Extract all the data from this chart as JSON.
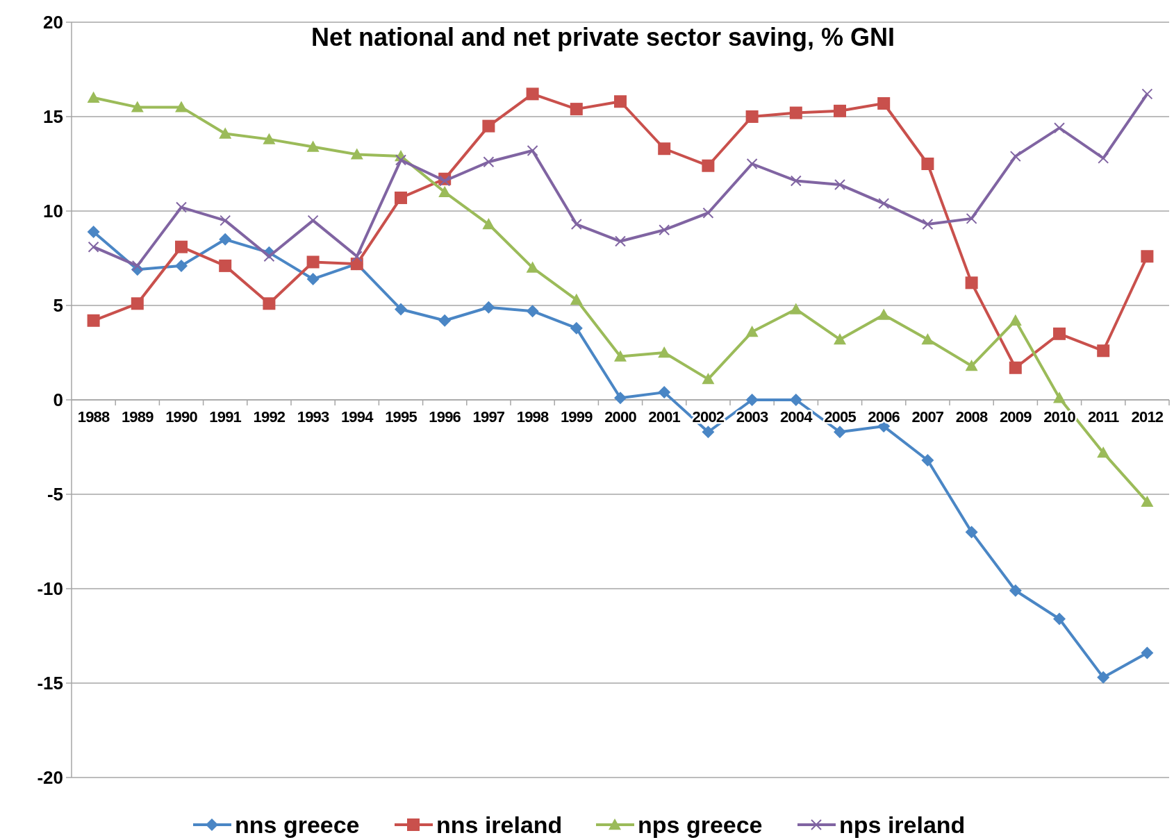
{
  "chart_data": {
    "type": "line",
    "title": "Net national and net private sector saving, % GNI",
    "categories": [
      "1988",
      "1989",
      "1990",
      "1991",
      "1992",
      "1993",
      "1994",
      "1995",
      "1996",
      "1997",
      "1998",
      "1999",
      "2000",
      "2001",
      "2002",
      "2003",
      "2004",
      "2005",
      "2006",
      "2007",
      "2008",
      "2009",
      "2010",
      "2011",
      "2012"
    ],
    "series": [
      {
        "name": "nns greece",
        "color": "#4a86c5",
        "marker": "diamond",
        "values": [
          8.9,
          6.9,
          7.1,
          8.5,
          7.8,
          6.4,
          7.2,
          4.8,
          4.2,
          4.9,
          4.7,
          3.8,
          0.1,
          0.4,
          -1.7,
          0,
          0,
          -1.7,
          -1.4,
          -3.2,
          -7,
          -10.1,
          -11.6,
          -14.7,
          -13.4
        ]
      },
      {
        "name": "nns ireland",
        "color": "#c9504c",
        "marker": "square",
        "values": [
          4.2,
          5.1,
          8.1,
          7.1,
          5.1,
          7.3,
          7.2,
          10.7,
          11.7,
          14.5,
          16.2,
          15.4,
          15.8,
          13.3,
          12.4,
          15,
          15.2,
          15.3,
          15.7,
          12.5,
          6.2,
          1.7,
          3.5,
          2.6,
          7.6
        ]
      },
      {
        "name": "nps greece",
        "color": "#9bbb59",
        "marker": "triangle",
        "values": [
          16,
          15.5,
          15.5,
          14.1,
          13.8,
          13.4,
          13,
          12.9,
          11,
          9.3,
          7,
          5.3,
          2.3,
          2.5,
          1.1,
          3.6,
          4.8,
          3.2,
          4.5,
          3.2,
          1.8,
          4.2,
          0.1,
          -2.8,
          -5.4
        ]
      },
      {
        "name": "nps ireland",
        "color": "#8064a2",
        "marker": "cross",
        "values": [
          8.1,
          7.1,
          10.2,
          9.5,
          7.6,
          9.5,
          7.6,
          12.7,
          11.6,
          12.6,
          13.2,
          9.3,
          8.4,
          9,
          9.9,
          12.5,
          11.6,
          11.4,
          10.4,
          9.3,
          9.6,
          12.9,
          14.4,
          12.8,
          16.2
        ]
      }
    ],
    "ylim": [
      -20,
      20
    ],
    "yticks": [
      -20,
      -15,
      -10,
      -5,
      0,
      5,
      10,
      15,
      20
    ],
    "grid": "y",
    "legend": "bottom",
    "line_style": "solid"
  }
}
